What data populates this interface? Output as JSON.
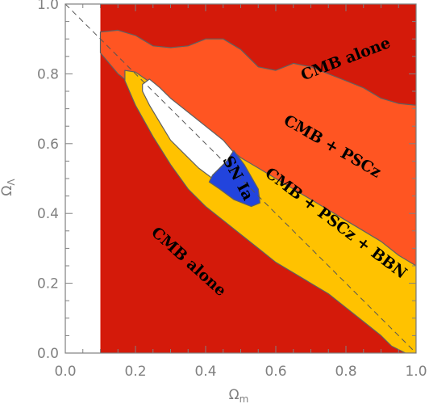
{
  "chart_data": {
    "type": "area",
    "xlabel": "Ω",
    "xlabel_sub": "m",
    "ylabel": "Ω",
    "ylabel_sub": "Λ",
    "xlim": [
      0.0,
      1.0
    ],
    "ylim": [
      0.0,
      1.0
    ],
    "x_ticks": [
      "0.0",
      "0.2",
      "0.4",
      "0.6",
      "0.8",
      "1.0"
    ],
    "y_ticks": [
      "0.0",
      "0.2",
      "0.4",
      "0.6",
      "0.8",
      "1.0"
    ],
    "excluded_region": {
      "x_max": 0.1,
      "color": "#ffffff"
    },
    "reference_line": {
      "from": [
        0.0,
        1.0
      ],
      "to": [
        1.0,
        0.0
      ],
      "style": "dashed"
    },
    "background_color": "#d41a0a",
    "series": [
      {
        "name": "CMB + PSCz",
        "color": "#ff5522",
        "points": [
          [
            0.1,
            0.86
          ],
          [
            0.1,
            0.92
          ],
          [
            0.15,
            0.925
          ],
          [
            0.2,
            0.91
          ],
          [
            0.25,
            0.88
          ],
          [
            0.3,
            0.875
          ],
          [
            0.35,
            0.88
          ],
          [
            0.4,
            0.9
          ],
          [
            0.45,
            0.9
          ],
          [
            0.5,
            0.87
          ],
          [
            0.55,
            0.82
          ],
          [
            0.6,
            0.81
          ],
          [
            0.65,
            0.83
          ],
          [
            0.7,
            0.82
          ],
          [
            0.75,
            0.8
          ],
          [
            0.8,
            0.78
          ],
          [
            0.85,
            0.76
          ],
          [
            0.9,
            0.73
          ],
          [
            0.95,
            0.715
          ],
          [
            1.0,
            0.71
          ],
          [
            1.0,
            0.24
          ],
          [
            0.95,
            0.27
          ],
          [
            0.9,
            0.3
          ],
          [
            0.85,
            0.32
          ],
          [
            0.8,
            0.34
          ],
          [
            0.75,
            0.37
          ],
          [
            0.7,
            0.4
          ],
          [
            0.65,
            0.43
          ],
          [
            0.6,
            0.46
          ],
          [
            0.55,
            0.5
          ],
          [
            0.5,
            0.53
          ],
          [
            0.45,
            0.56
          ],
          [
            0.4,
            0.6
          ],
          [
            0.35,
            0.63
          ],
          [
            0.3,
            0.67
          ],
          [
            0.25,
            0.72
          ],
          [
            0.2,
            0.76
          ],
          [
            0.15,
            0.8
          ],
          [
            0.1,
            0.86
          ]
        ]
      },
      {
        "name": "CMB + PSCz + BBN",
        "color": "#ffc200",
        "points": [
          [
            0.17,
            0.81
          ],
          [
            0.2,
            0.805
          ],
          [
            0.25,
            0.77
          ],
          [
            0.3,
            0.72
          ],
          [
            0.35,
            0.68
          ],
          [
            0.4,
            0.64
          ],
          [
            0.45,
            0.6
          ],
          [
            0.5,
            0.56
          ],
          [
            0.55,
            0.53
          ],
          [
            0.6,
            0.5
          ],
          [
            0.65,
            0.47
          ],
          [
            0.7,
            0.44
          ],
          [
            0.75,
            0.41
          ],
          [
            0.8,
            0.38
          ],
          [
            0.85,
            0.35
          ],
          [
            0.9,
            0.32
          ],
          [
            0.95,
            0.28
          ],
          [
            1.0,
            0.25
          ],
          [
            1.0,
            0.0
          ],
          [
            0.97,
            0.0
          ],
          [
            0.93,
            0.02
          ],
          [
            0.9,
            0.05
          ],
          [
            0.85,
            0.09
          ],
          [
            0.8,
            0.13
          ],
          [
            0.75,
            0.17
          ],
          [
            0.7,
            0.2
          ],
          [
            0.65,
            0.23
          ],
          [
            0.6,
            0.26
          ],
          [
            0.55,
            0.3
          ],
          [
            0.5,
            0.34
          ],
          [
            0.45,
            0.38
          ],
          [
            0.4,
            0.42
          ],
          [
            0.35,
            0.47
          ],
          [
            0.3,
            0.54
          ],
          [
            0.25,
            0.62
          ],
          [
            0.2,
            0.71
          ],
          [
            0.17,
            0.78
          ],
          [
            0.17,
            0.81
          ]
        ]
      },
      {
        "name": "",
        "color": "#ffffff",
        "points": [
          [
            0.22,
            0.77
          ],
          [
            0.24,
            0.785
          ],
          [
            0.27,
            0.76
          ],
          [
            0.3,
            0.73
          ],
          [
            0.35,
            0.69
          ],
          [
            0.4,
            0.65
          ],
          [
            0.45,
            0.61
          ],
          [
            0.48,
            0.575
          ],
          [
            0.46,
            0.52
          ],
          [
            0.42,
            0.5
          ],
          [
            0.38,
            0.53
          ],
          [
            0.34,
            0.57
          ],
          [
            0.3,
            0.61
          ],
          [
            0.27,
            0.66
          ],
          [
            0.24,
            0.71
          ],
          [
            0.22,
            0.75
          ],
          [
            0.22,
            0.77
          ]
        ]
      },
      {
        "name": "SN Ia",
        "color": "#2244dd",
        "points": [
          [
            0.48,
            0.58
          ],
          [
            0.51,
            0.54
          ],
          [
            0.55,
            0.47
          ],
          [
            0.555,
            0.43
          ],
          [
            0.53,
            0.42
          ],
          [
            0.48,
            0.44
          ],
          [
            0.44,
            0.47
          ],
          [
            0.41,
            0.49
          ],
          [
            0.42,
            0.51
          ],
          [
            0.46,
            0.55
          ],
          [
            0.48,
            0.58
          ]
        ]
      }
    ],
    "annotations": [
      {
        "text": "CMB alone",
        "x": 0.8,
        "y": 0.84,
        "rotation": -21
      },
      {
        "text": "CMB + PSCz",
        "x": 0.76,
        "y": 0.59,
        "rotation": 30
      },
      {
        "text": "SN Ia",
        "x": 0.49,
        "y": 0.5,
        "rotation": 62
      },
      {
        "text": "CMB + PSCz + BBN",
        "x": 0.77,
        "y": 0.37,
        "rotation": 37
      },
      {
        "text": "CMB alone",
        "x": 0.35,
        "y": 0.26,
        "rotation": 42
      }
    ]
  }
}
